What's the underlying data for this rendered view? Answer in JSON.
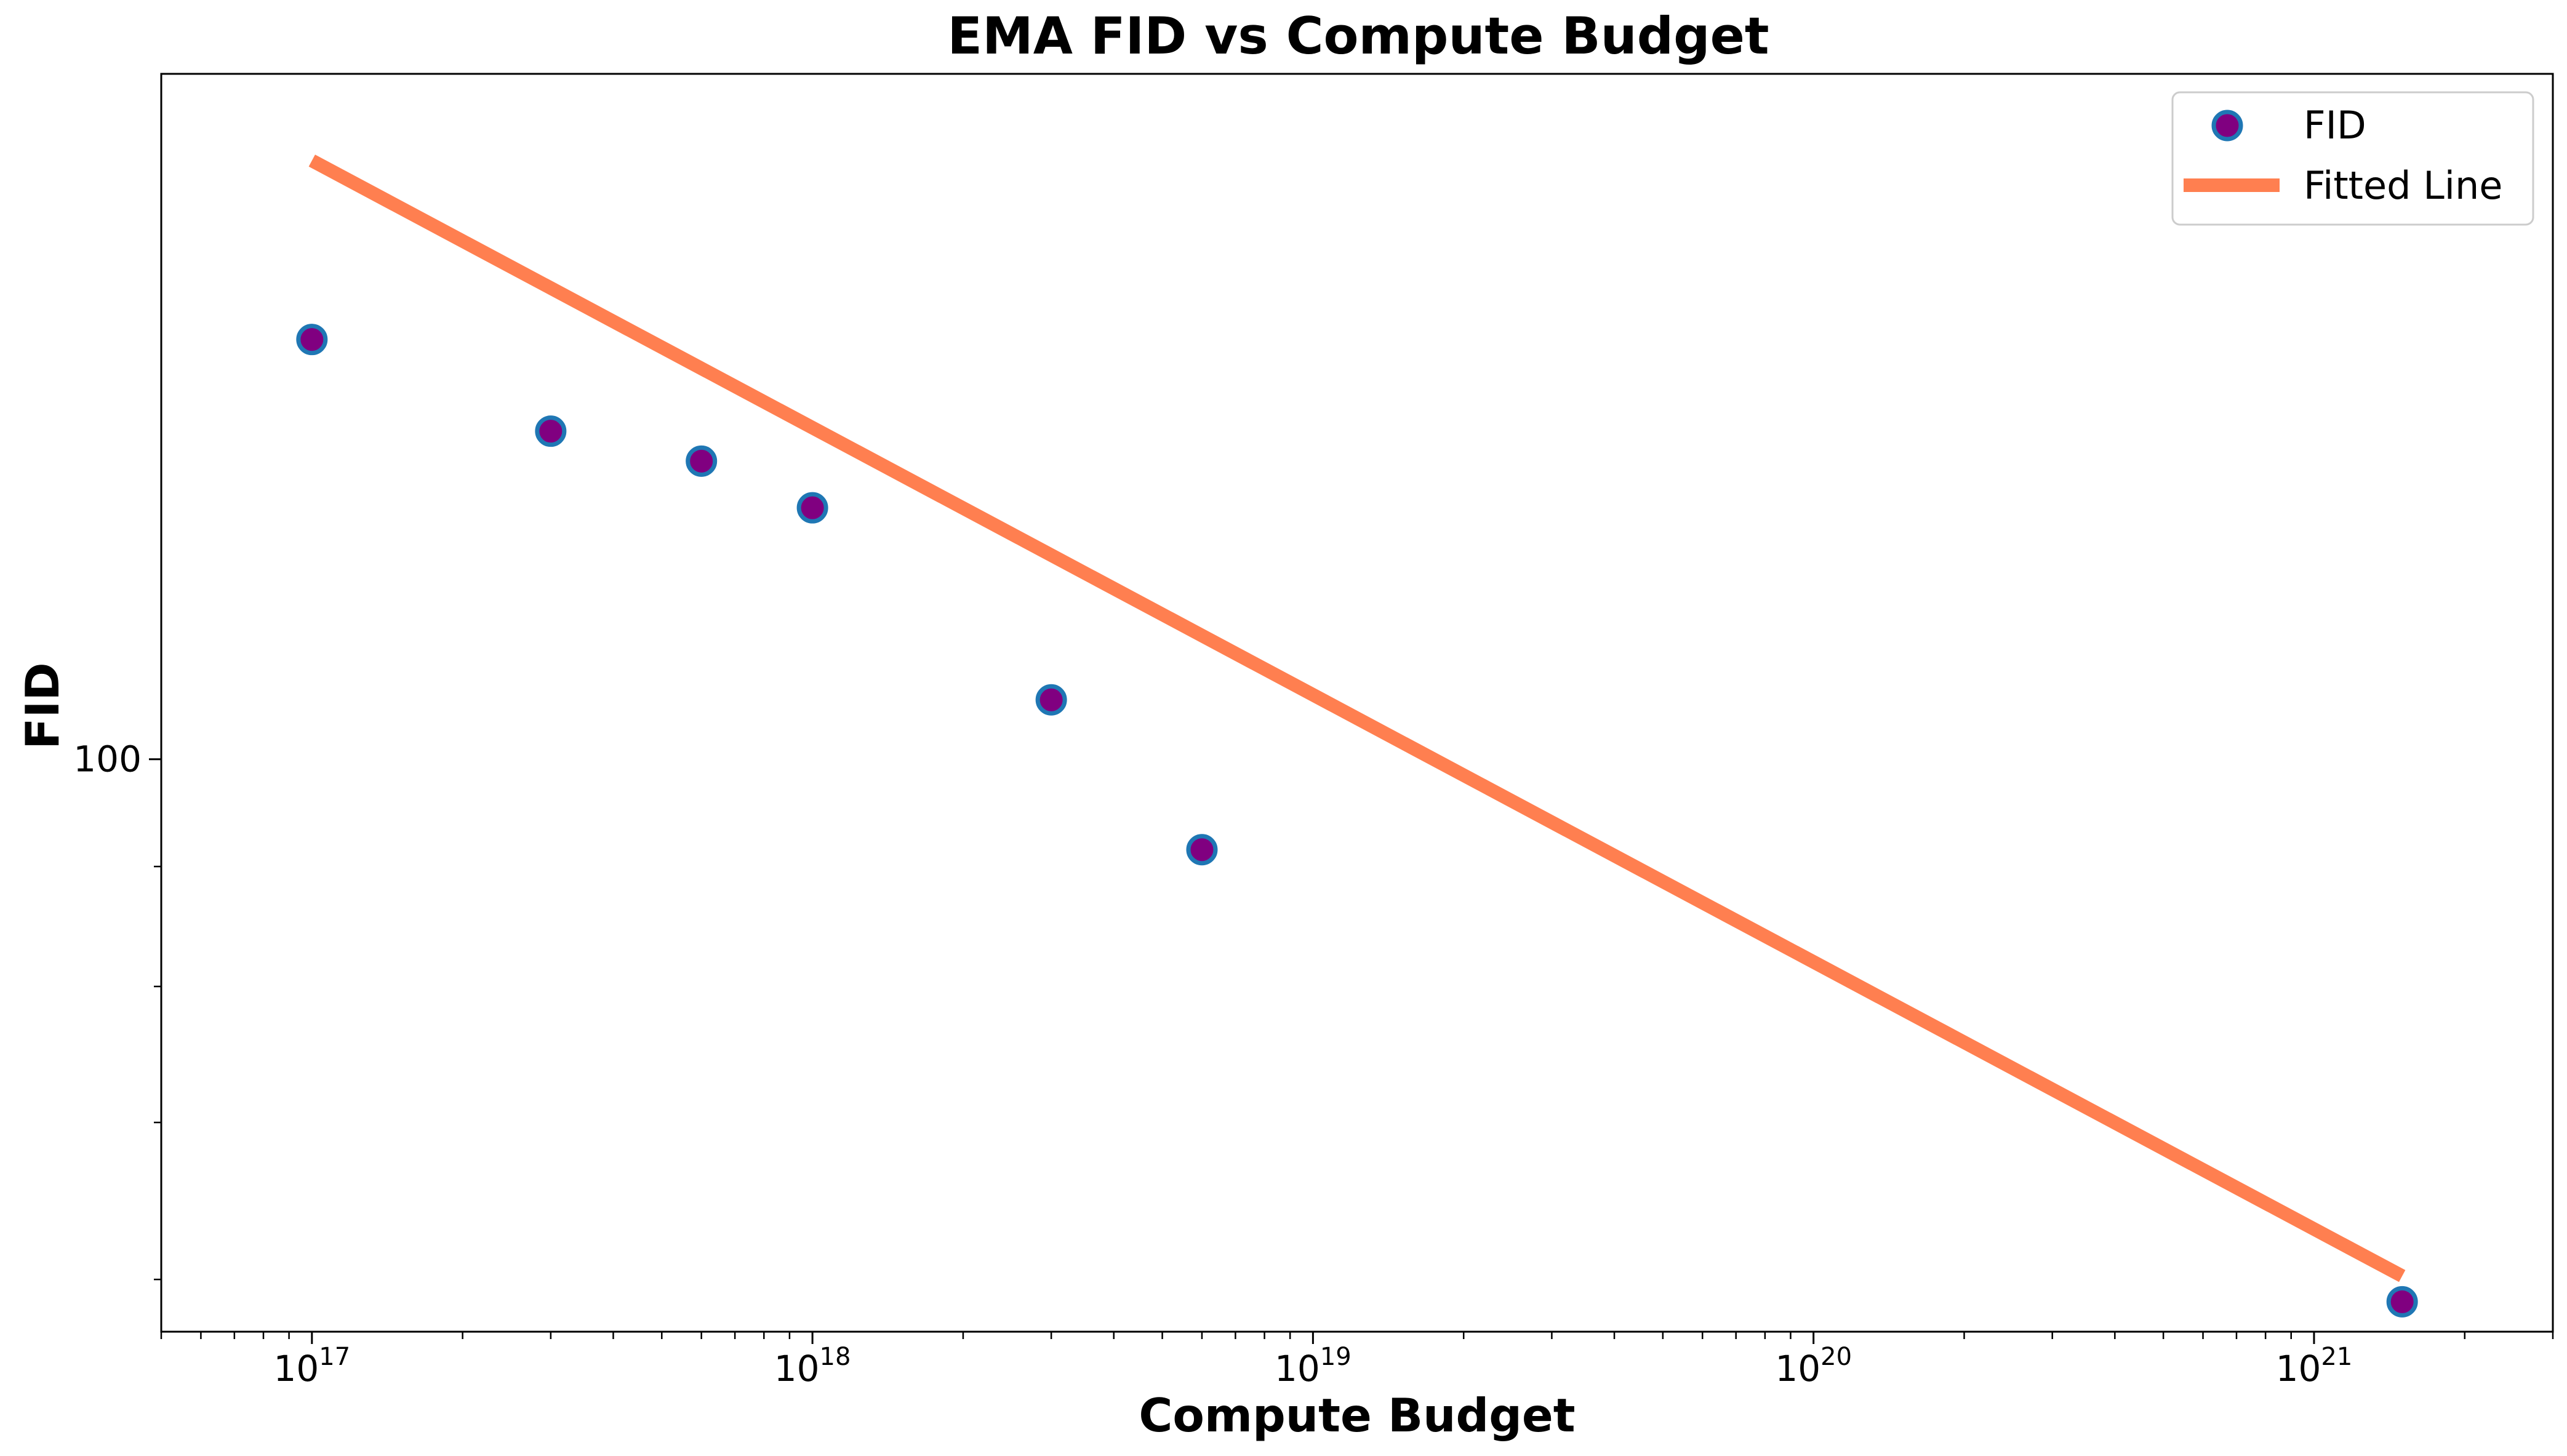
{
  "chart_data": {
    "type": "scatter",
    "title": "EMA FID vs Compute Budget",
    "xlabel": "Compute Budget",
    "ylabel": "FID",
    "xscale": "log",
    "yscale": "log",
    "xlim": [
      5e+16,
      3e+21
    ],
    "ylim": [
      57,
      196
    ],
    "x_ticks": [
      {
        "value": 1e+17,
        "base": "10",
        "exp": "17"
      },
      {
        "value": 1e+18,
        "base": "10",
        "exp": "18"
      },
      {
        "value": 1e+19,
        "base": "10",
        "exp": "19"
      },
      {
        "value": 1e+20,
        "base": "10",
        "exp": "20"
      },
      {
        "value": 1e+21,
        "base": "10",
        "exp": "21"
      }
    ],
    "y_ticks": [
      {
        "value": 100,
        "label": "100"
      }
    ],
    "grid": false,
    "legend": "top-right",
    "series": [
      {
        "name": "FID",
        "kind": "markers",
        "x": [
          1e+17,
          3e+17,
          6e+17,
          1e+18,
          3e+18,
          6e+18,
          1.5e+21
        ],
        "y": [
          151,
          138,
          134,
          128,
          106,
          91.5,
          58.7
        ],
        "marker_face": "#800080",
        "marker_edge": "#1f77b4"
      },
      {
        "name": "Fitted Line",
        "kind": "line",
        "x": [
          1e+17,
          1.5e+21
        ],
        "y": [
          180,
          60.2
        ],
        "color": "#ff7f50"
      }
    ]
  }
}
